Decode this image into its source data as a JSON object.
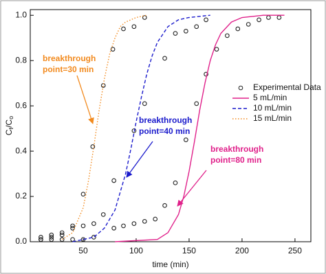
{
  "chart_data": {
    "type": "scatter_line",
    "xlabel": "time (min)",
    "ylabel": [
      "C",
      "t",
      "/C",
      "o"
    ],
    "xlim": [
      0,
      265
    ],
    "ylim": [
      0,
      1.025
    ],
    "xticks": [
      50,
      100,
      150,
      200,
      250
    ],
    "yticks": [
      {
        "value": 0,
        "label": "0.0"
      },
      0.2,
      0.4,
      0.6,
      0.8,
      {
        "value": 1,
        "label": "1.0"
      }
    ],
    "legend": "right",
    "series": [
      {
        "name": "Experimental Data",
        "kind": "markers",
        "color": "#222222",
        "x": [
          10,
          20,
          30,
          40,
          50,
          59,
          69,
          78,
          88,
          98,
          108,
          10,
          20,
          30,
          40,
          50,
          60,
          69,
          79,
          98,
          108,
          127,
          137,
          147,
          157,
          166,
          10,
          20,
          30,
          40,
          50,
          60,
          79,
          88,
          98,
          108,
          118,
          127,
          137,
          147,
          157,
          166,
          176,
          186,
          196,
          206,
          216,
          225,
          235
        ],
        "values": [
          0.01,
          0.02,
          0.03,
          0.06,
          0.21,
          0.42,
          0.69,
          0.85,
          0.94,
          0.95,
          0.99,
          0.02,
          0.03,
          0.04,
          0.07,
          0.07,
          0.08,
          0.12,
          0.27,
          0.49,
          0.61,
          0.81,
          0.92,
          0.93,
          0.95,
          0.98,
          0.01,
          0.01,
          0.01,
          0.01,
          0.01,
          0.02,
          0.06,
          0.07,
          0.08,
          0.09,
          0.1,
          0.16,
          0.26,
          0.45,
          0.61,
          0.74,
          0.85,
          0.91,
          0.94,
          0.96,
          0.98,
          0.99,
          0.99
        ]
      },
      {
        "name": "5  mL/min",
        "kind": "line",
        "dash": "solid",
        "color": "#e0208a",
        "x": [
          80,
          120,
          130,
          140,
          145,
          150,
          155,
          160,
          165,
          170,
          175,
          180,
          190,
          200,
          220,
          240
        ],
        "values": [
          0,
          0.01,
          0.04,
          0.12,
          0.2,
          0.31,
          0.44,
          0.58,
          0.7,
          0.8,
          0.87,
          0.92,
          0.97,
          0.99,
          1.0,
          1.0
        ]
      },
      {
        "name": "10 mL/min",
        "kind": "line",
        "dash": "dashed",
        "color": "#1a1acc",
        "x": [
          40,
          60,
          70,
          80,
          90,
          95,
          100,
          105,
          110,
          115,
          120,
          130,
          140,
          150,
          170
        ],
        "values": [
          0,
          0.02,
          0.06,
          0.14,
          0.3,
          0.41,
          0.53,
          0.64,
          0.74,
          0.82,
          0.88,
          0.95,
          0.98,
          0.99,
          1.0
        ]
      },
      {
        "name": "15 mL/min",
        "kind": "line",
        "dash": "dotted",
        "color": "#f28a1e",
        "x": [
          30,
          40,
          50,
          55,
          60,
          65,
          70,
          75,
          80,
          85,
          90,
          100,
          110
        ],
        "values": [
          0.01,
          0.04,
          0.15,
          0.27,
          0.42,
          0.58,
          0.72,
          0.83,
          0.9,
          0.95,
          0.97,
          0.99,
          1.0
        ]
      }
    ],
    "annotations": [
      {
        "lines": [
          "breakthrough",
          "point=30 min"
        ],
        "color": "#f28a1e"
      },
      {
        "lines": [
          "breakthrough",
          "point=40 min"
        ],
        "color": "#1a1acc"
      },
      {
        "lines": [
          "breakthrough",
          "point=80 min"
        ],
        "color": "#e0208a"
      }
    ]
  }
}
